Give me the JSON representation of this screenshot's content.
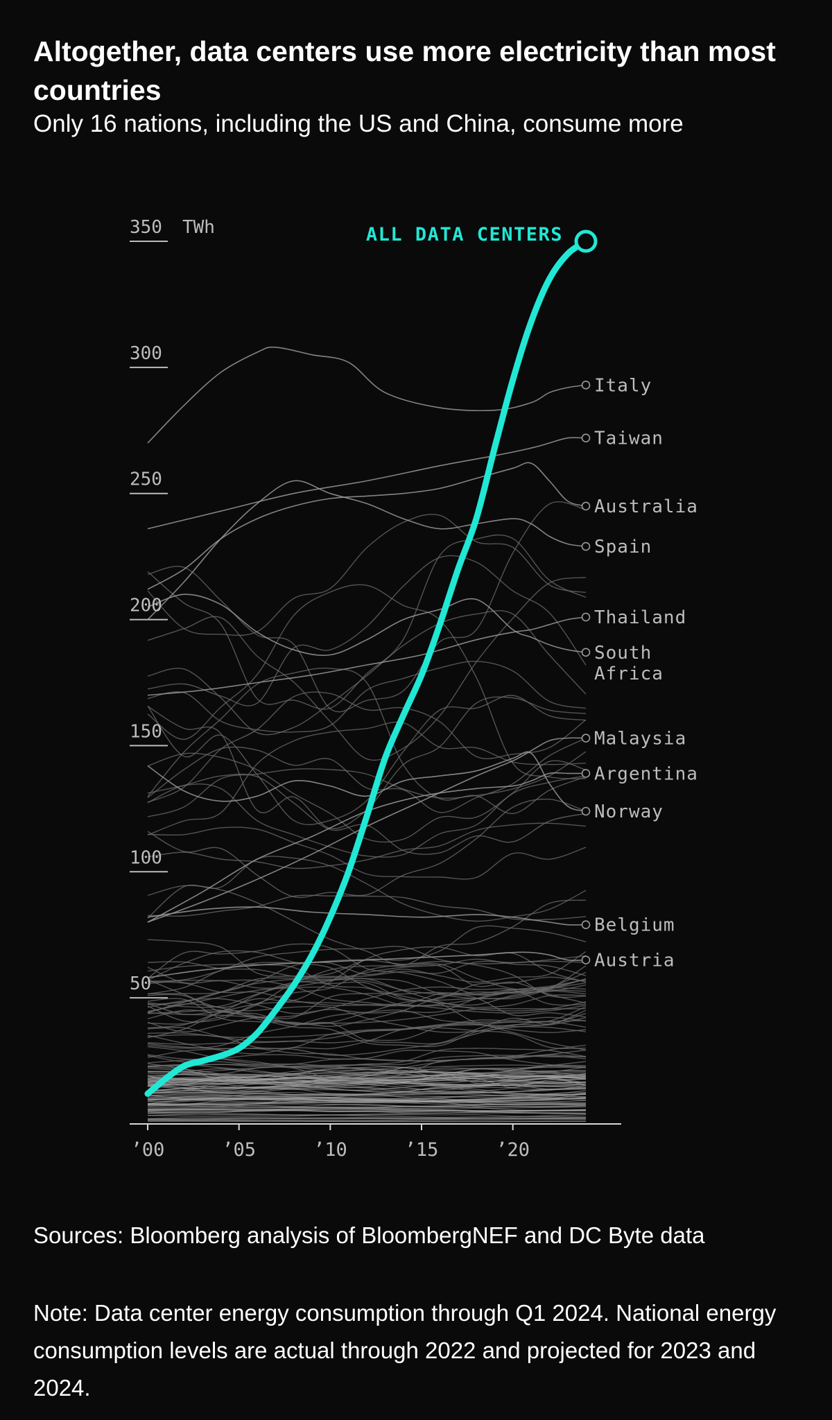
{
  "title": "Altogether, data centers use more electricity than most countries",
  "subtitle": "Only 16 nations, including the US and China, consume more",
  "sources": "Sources: Bloomberg analysis of BloombergNEF and DC Byte data",
  "note": "Note: Data center energy consumption through Q1 2024. National energy consumption levels are actual through 2022 and projected for 2023 and 2024.",
  "colors": {
    "background": "#0a0a0a",
    "highlight": "#20e8d5",
    "country_lines": "#8a8a8a",
    "text": "#ffffff",
    "axis_text": "#bdbdbd"
  },
  "chart_data": {
    "type": "line",
    "x_range": [
      2000,
      2024
    ],
    "y_range": [
      0,
      350
    ],
    "y_unit": "TWh",
    "y_ticks": [
      {
        "value": 50,
        "label": "50"
      },
      {
        "value": 100,
        "label": "100"
      },
      {
        "value": 150,
        "label": "150"
      },
      {
        "value": 200,
        "label": "200"
      },
      {
        "value": 250,
        "label": "250"
      },
      {
        "value": 300,
        "label": "300"
      },
      {
        "value": 350,
        "label": "350"
      }
    ],
    "x_ticks": [
      {
        "value": 2000,
        "label": "’00"
      },
      {
        "value": 2005,
        "label": "’05"
      },
      {
        "value": 2010,
        "label": "’10"
      },
      {
        "value": 2015,
        "label": "’15"
      },
      {
        "value": 2020,
        "label": "’20"
      }
    ],
    "highlight_series": {
      "name": "ALL DATA CENTERS",
      "x": [
        2000,
        2001,
        2002,
        2003,
        2004,
        2005,
        2006,
        2007,
        2008,
        2009,
        2010,
        2011,
        2012,
        2013,
        2014,
        2015,
        2016,
        2017,
        2018,
        2019,
        2020,
        2021,
        2022,
        2023,
        2024
      ],
      "y": [
        12,
        18,
        23,
        25,
        27,
        30,
        36,
        45,
        55,
        67,
        82,
        100,
        122,
        145,
        162,
        178,
        198,
        220,
        240,
        268,
        295,
        318,
        335,
        345,
        350
      ]
    },
    "labeled_series": [
      {
        "name": "Italy",
        "x": [
          2000,
          2002,
          2004,
          2006,
          2007,
          2009,
          2011,
          2013,
          2016,
          2019,
          2021,
          2022,
          2023,
          2024
        ],
        "y": [
          270,
          285,
          298,
          306,
          308,
          305,
          302,
          290,
          284,
          283,
          286,
          290,
          292,
          293
        ]
      },
      {
        "name": "Taiwan",
        "x": [
          2000,
          2004,
          2008,
          2012,
          2016,
          2019,
          2021,
          2022,
          2023,
          2024
        ],
        "y": [
          236,
          243,
          250,
          255,
          261,
          265,
          268,
          270,
          272,
          272
        ]
      },
      {
        "name": "Australia",
        "x": [
          2000,
          2002,
          2004,
          2006,
          2008,
          2010,
          2012,
          2014,
          2016,
          2018,
          2020,
          2021,
          2022,
          2023,
          2024
        ],
        "y": [
          212,
          220,
          232,
          240,
          245,
          248,
          249,
          250,
          252,
          256,
          260,
          262,
          255,
          247,
          245
        ]
      },
      {
        "name": "Spain",
        "x": [
          2000,
          2002,
          2004,
          2006,
          2008,
          2010,
          2012,
          2014,
          2016,
          2018,
          2020,
          2021,
          2022,
          2023,
          2024
        ],
        "y": [
          200,
          215,
          232,
          246,
          255,
          250,
          246,
          240,
          236,
          238,
          240,
          238,
          233,
          230,
          229
        ]
      },
      {
        "name": "Thailand",
        "x": [
          2000,
          2003,
          2006,
          2009,
          2012,
          2015,
          2018,
          2020,
          2021,
          2022,
          2023,
          2024
        ],
        "y": [
          170,
          172,
          175,
          178,
          182,
          186,
          192,
          195,
          196,
          198,
          200,
          201
        ]
      },
      {
        "name": "South Africa",
        "x": [
          2000,
          2002,
          2004,
          2006,
          2008,
          2010,
          2012,
          2014,
          2016,
          2018,
          2020,
          2021,
          2022,
          2023,
          2024
        ],
        "y": [
          205,
          210,
          206,
          195,
          188,
          186,
          192,
          200,
          204,
          208,
          196,
          193,
          190,
          188,
          187
        ]
      },
      {
        "name": "Malaysia",
        "x": [
          2000,
          2003,
          2006,
          2009,
          2012,
          2015,
          2018,
          2020,
          2021,
          2022,
          2023,
          2024
        ],
        "y": [
          80,
          88,
          97,
          107,
          118,
          128,
          138,
          144,
          148,
          152,
          153,
          153
        ]
      },
      {
        "name": "Argentina",
        "x": [
          2000,
          2003,
          2006,
          2009,
          2012,
          2015,
          2018,
          2020,
          2021,
          2022,
          2023,
          2024
        ],
        "y": [
          80,
          92,
          105,
          114,
          124,
          130,
          133,
          134,
          136,
          139,
          139,
          139
        ]
      },
      {
        "name": "Norway",
        "x": [
          2000,
          2002,
          2004,
          2006,
          2008,
          2010,
          2012,
          2014,
          2016,
          2018,
          2020,
          2021,
          2022,
          2023,
          2024
        ],
        "y": [
          142,
          132,
          128,
          130,
          136,
          134,
          130,
          136,
          138,
          140,
          145,
          147,
          135,
          126,
          124
        ]
      },
      {
        "name": "Belgium",
        "x": [
          2000,
          2003,
          2006,
          2009,
          2012,
          2015,
          2018,
          2020,
          2021,
          2022,
          2023,
          2024
        ],
        "y": [
          82,
          85,
          86,
          84,
          83,
          82,
          83,
          82,
          81,
          80,
          79,
          79
        ]
      },
      {
        "name": "Austria",
        "x": [
          2000,
          2003,
          2006,
          2009,
          2012,
          2015,
          2018,
          2020,
          2021,
          2022,
          2023,
          2024
        ],
        "y": [
          58,
          61,
          63,
          64,
          65,
          66,
          67,
          68,
          68,
          67,
          65,
          65
        ]
      }
    ]
  }
}
